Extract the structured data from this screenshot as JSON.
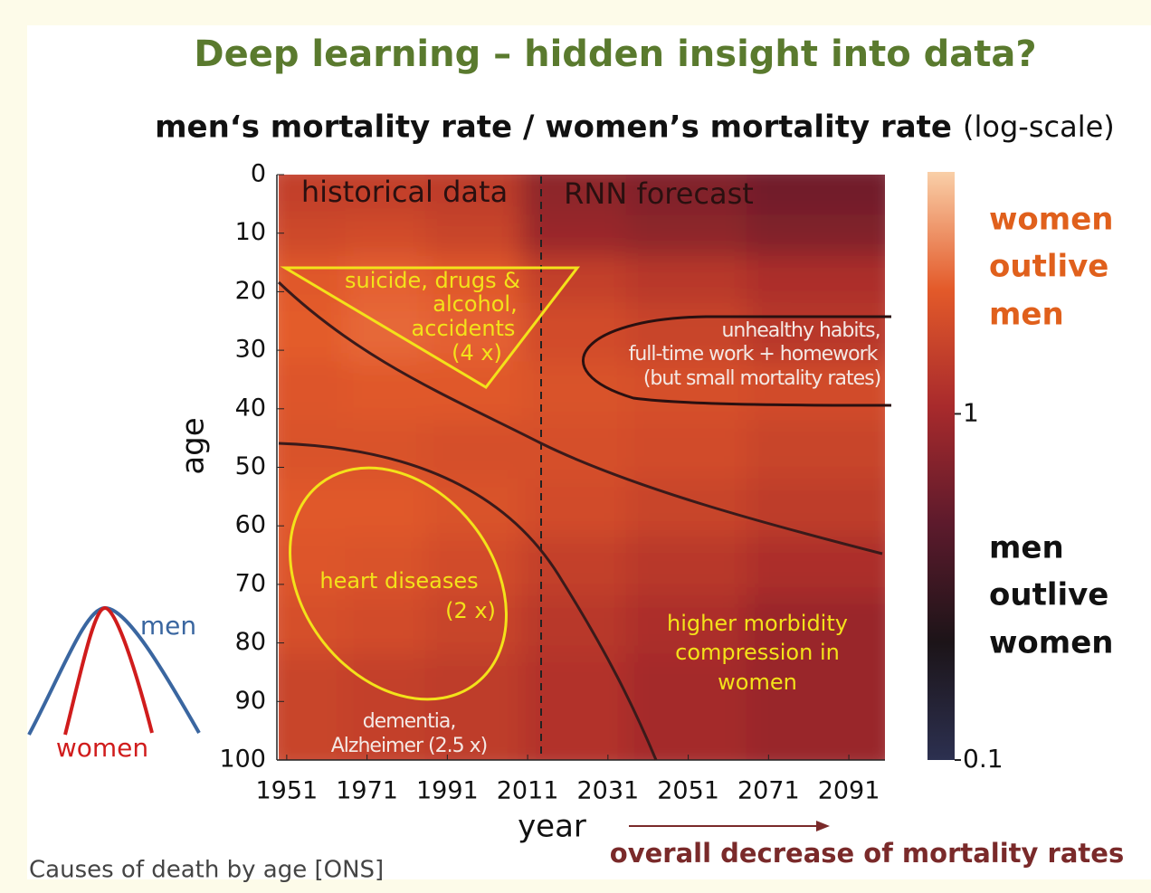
{
  "title": "Deep learning – hidden insight into data?",
  "subtitle_bold": "men‘s mortality rate / women’s mortality rate",
  "subtitle_note": "(log-scale)",
  "inset": {
    "men": "men",
    "women": "women"
  },
  "source": "Causes of death by age [ONS]",
  "trend_note": "overall decrease of mortality rates",
  "chart_data": {
    "type": "heatmap",
    "xlabel": "year",
    "ylabel": "age",
    "xlim": [
      1949,
      2100
    ],
    "xticks": [
      1951,
      1971,
      1991,
      2011,
      2031,
      2051,
      2071,
      2091
    ],
    "ylim": [
      0,
      100
    ],
    "yticks": [
      0,
      10,
      20,
      30,
      40,
      50,
      60,
      70,
      80,
      90,
      100
    ],
    "xbins": [
      1949,
      1970,
      1990,
      2014,
      2040,
      2070,
      2100
    ],
    "ybins": [
      0,
      10,
      17,
      25,
      35,
      45,
      55,
      65,
      75,
      85,
      100
    ],
    "values": [
      [
        1.5,
        1.5,
        1.4,
        0.8,
        0.7,
        0.6
      ],
      [
        1.7,
        1.8,
        1.6,
        0.9,
        0.8,
        0.7
      ],
      [
        2.2,
        2.4,
        2.2,
        1.5,
        1.3,
        1.1
      ],
      [
        2.3,
        2.5,
        2.4,
        1.8,
        1.6,
        1.3
      ],
      [
        2.1,
        2.2,
        2.2,
        2.0,
        1.9,
        1.8
      ],
      [
        2.0,
        2.0,
        1.9,
        1.9,
        1.8,
        1.6
      ],
      [
        2.2,
        2.2,
        2.0,
        1.8,
        1.6,
        1.4
      ],
      [
        2.1,
        2.0,
        1.8,
        1.5,
        1.3,
        1.1
      ],
      [
        1.9,
        1.8,
        1.6,
        1.3,
        1.1,
        0.9
      ],
      [
        1.6,
        1.5,
        1.4,
        1.2,
        1.0,
        0.9
      ]
    ],
    "colorbar": {
      "log": true,
      "clim": [
        0.1,
        5
      ],
      "ticks": [
        1,
        0.1
      ],
      "colormap": [
        "#2c3050",
        "#1c1418",
        "#5c1a2c",
        "#a82a2c",
        "#e35a2a",
        "#f9cfa8"
      ],
      "top_label": [
        "women",
        "outlive",
        "men"
      ],
      "bottom_label": [
        "men",
        "outlive",
        "women"
      ]
    },
    "annotations": {
      "historical": "historical data",
      "forecast": "RNN forecast",
      "suicide": [
        "suicide, drugs &",
        "alcohol,",
        "accidents",
        "(4 x)"
      ],
      "habits": [
        "unhealthy habits,",
        "full-time work + homework",
        "(but small mortality rates)"
      ],
      "heart": [
        "heart diseases",
        "(2 x)"
      ],
      "morbidity": [
        "higher morbidity",
        "compression in",
        "women"
      ],
      "dementia": [
        "dementia,",
        "Alzheimer (2.5 x)"
      ]
    }
  }
}
